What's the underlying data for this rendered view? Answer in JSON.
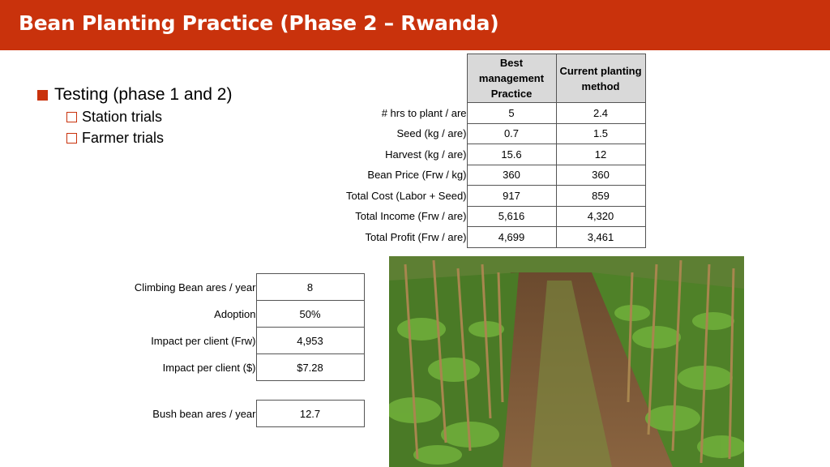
{
  "header": {
    "title": "Bean Planting Practice (Phase 2 – Rwanda)"
  },
  "bullets": {
    "main": "Testing (phase 1 and 2)",
    "sub": [
      "Station trials",
      "Farmer trials"
    ]
  },
  "comparison_table": {
    "columns": [
      "Best management Practice",
      "Current planting method"
    ],
    "rows": [
      {
        "label": "# hrs to plant / are",
        "values": [
          "5",
          "2.4"
        ]
      },
      {
        "label": "Seed (kg / are)",
        "values": [
          "0.7",
          "1.5"
        ]
      },
      {
        "label": "Harvest (kg / are)",
        "values": [
          "15.6",
          "12"
        ]
      },
      {
        "label": "Bean Price (Frw / kg)",
        "values": [
          "360",
          "360"
        ]
      },
      {
        "label": "Total Cost (Labor + Seed)",
        "values": [
          "917",
          "859"
        ]
      },
      {
        "label": "Total Income (Frw / are)",
        "values": [
          "5,616",
          "4,320"
        ]
      },
      {
        "label": "Total Profit (Frw / are)",
        "values": [
          "4,699",
          "3,461"
        ]
      }
    ]
  },
  "impact_table": {
    "rows": [
      {
        "label": "Climbing Bean ares / year",
        "value": "8"
      },
      {
        "label": "Adoption",
        "value": "50%"
      },
      {
        "label": "Impact per client (Frw)",
        "value": "4,953"
      },
      {
        "label": "Impact per client ($)",
        "value": "$7.28"
      }
    ],
    "extra": {
      "label": "Bush bean ares / year",
      "value": "12.7"
    }
  },
  "colors": {
    "accent": "#c9320c"
  }
}
